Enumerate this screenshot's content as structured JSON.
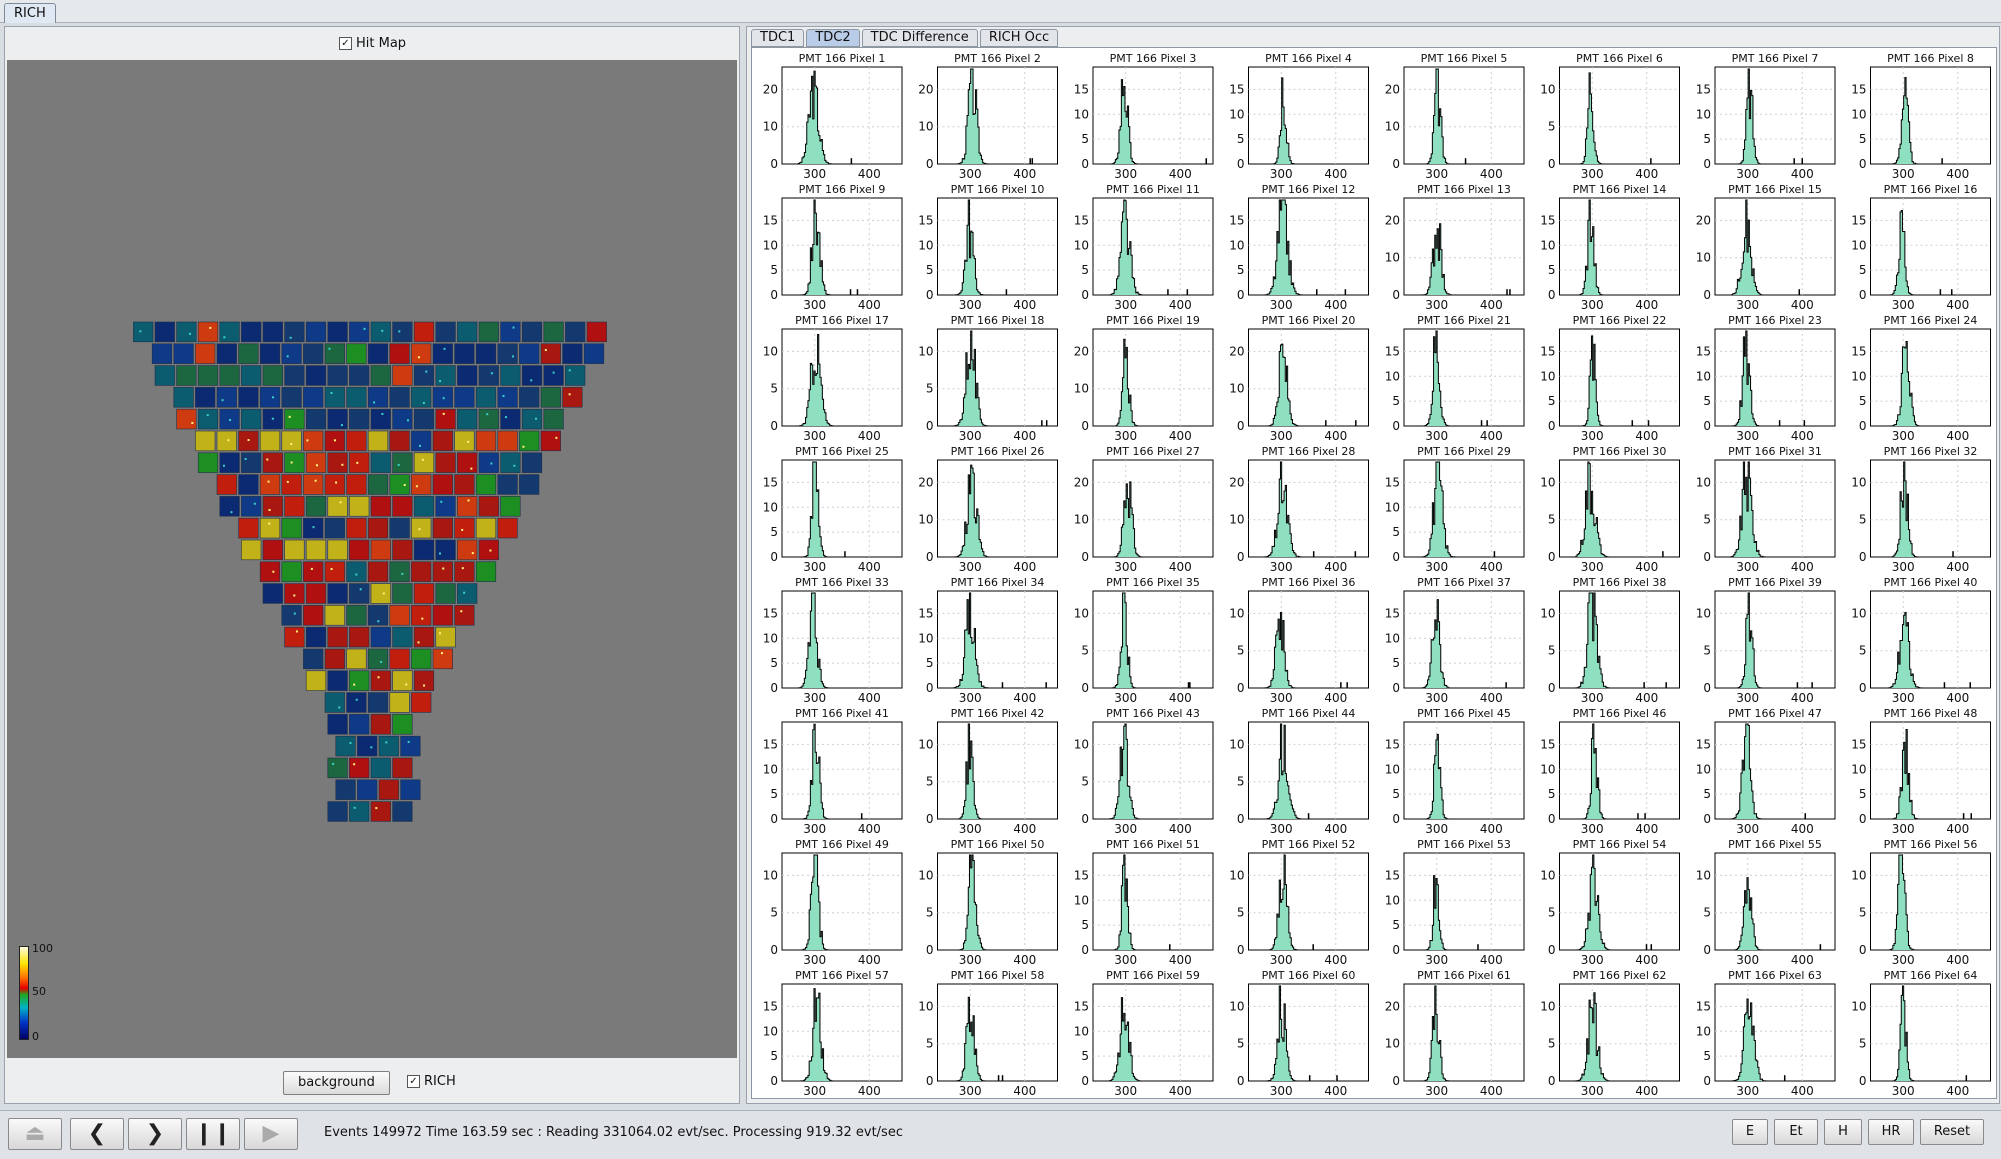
{
  "window": {
    "main_tab": "RICH"
  },
  "left": {
    "hitmap_checkbox": {
      "label": "Hit Map",
      "checked": true
    },
    "legend": {
      "max": "100",
      "mid": "50",
      "min": "0"
    },
    "background_button": "background",
    "rich_checkbox": {
      "label": "RICH",
      "checked": true
    }
  },
  "right": {
    "tabs": [
      "TDC1",
      "TDC2",
      "TDC Difference",
      "RICH Occ"
    ],
    "active_tab": "TDC2",
    "plots": {
      "xticks": [
        "300",
        "400"
      ],
      "titles": [
        "PMT 166 Pixel 1",
        "PMT 166 Pixel 2",
        "PMT 166 Pixel 3",
        "PMT 166 Pixel 4",
        "PMT 166 Pixel 5",
        "PMT 166 Pixel 6",
        "PMT 166 Pixel 7",
        "PMT 166 Pixel 8",
        "PMT 166 Pixel 9",
        "PMT 166 Pixel 10",
        "PMT 166 Pixel 11",
        "PMT 166 Pixel 12",
        "PMT 166 Pixel 13",
        "PMT 166 Pixel 14",
        "PMT 166 Pixel 15",
        "PMT 166 Pixel 16",
        "PMT 166 Pixel 17",
        "PMT 166 Pixel 18",
        "PMT 166 Pixel 19",
        "PMT 166 Pixel 20",
        "PMT 166 Pixel 21",
        "PMT 166 Pixel 22",
        "PMT 166 Pixel 23",
        "PMT 166 Pixel 24",
        "PMT 166 Pixel 25",
        "PMT 166 Pixel 26",
        "PMT 166 Pixel 27",
        "PMT 166 Pixel 28",
        "PMT 166 Pixel 29",
        "PMT 166 Pixel 30",
        "PMT 166 Pixel 31",
        "PMT 166 Pixel 32",
        "PMT 166 Pixel 33",
        "PMT 166 Pixel 34",
        "PMT 166 Pixel 35",
        "PMT 166 Pixel 36",
        "PMT 166 Pixel 37",
        "PMT 166 Pixel 38",
        "PMT 166 Pixel 39",
        "PMT 166 Pixel 40",
        "PMT 166 Pixel 41",
        "PMT 166 Pixel 42",
        "PMT 166 Pixel 43",
        "PMT 166 Pixel 44",
        "PMT 166 Pixel 45",
        "PMT 166 Pixel 46",
        "PMT 166 Pixel 47",
        "PMT 166 Pixel 48",
        "PMT 166 Pixel 49",
        "PMT 166 Pixel 50",
        "PMT 166 Pixel 51",
        "PMT 166 Pixel 52",
        "PMT 166 Pixel 53",
        "PMT 166 Pixel 54",
        "PMT 166 Pixel 55",
        "PMT 166 Pixel 56",
        "PMT 166 Pixel 57",
        "PMT 166 Pixel 58",
        "PMT 166 Pixel 59",
        "PMT 166 Pixel 60",
        "PMT 166 Pixel 61",
        "PMT 166 Pixel 62",
        "PMT 166 Pixel 63",
        "PMT 166 Pixel 64"
      ],
      "yticks": [
        [
          "0",
          "10",
          "20"
        ],
        [
          "0",
          "10",
          "20"
        ],
        [
          "0",
          "5",
          "10",
          "15"
        ],
        [
          "0",
          "5",
          "10",
          "15"
        ],
        [
          "0",
          "10",
          "20"
        ],
        [
          "0",
          "5",
          "10"
        ],
        [
          "0",
          "5",
          "10",
          "15"
        ],
        [
          "0",
          "5",
          "10",
          "15"
        ],
        [
          "0",
          "5",
          "10",
          "15"
        ],
        [
          "0",
          "5",
          "10",
          "15"
        ],
        [
          "0",
          "5",
          "10",
          "15"
        ],
        [
          "0",
          "5",
          "10",
          "15"
        ],
        [
          "0",
          "10",
          "20"
        ],
        [
          "0",
          "5",
          "10",
          "15"
        ],
        [
          "0",
          "10",
          "20"
        ],
        [
          "0",
          "5",
          "10",
          "15"
        ],
        [
          "0",
          "5",
          "10"
        ],
        [
          "0",
          "5",
          "10"
        ],
        [
          "0",
          "10",
          "20"
        ],
        [
          "0",
          "10",
          "20"
        ],
        [
          "0",
          "5",
          "10",
          "15"
        ],
        [
          "0",
          "5",
          "10",
          "15"
        ],
        [
          "0",
          "5",
          "10",
          "15"
        ],
        [
          "0",
          "5",
          "10",
          "15"
        ],
        [
          "0",
          "5",
          "10",
          "15"
        ],
        [
          "0",
          "10",
          "20"
        ],
        [
          "0",
          "10",
          "20"
        ],
        [
          "0",
          "10",
          "20"
        ],
        [
          "0",
          "5",
          "10",
          "15"
        ],
        [
          "0",
          "5",
          "10"
        ],
        [
          "0",
          "5",
          "10"
        ],
        [
          "0",
          "5",
          "10"
        ],
        [
          "0",
          "5",
          "10",
          "15"
        ],
        [
          "0",
          "5",
          "10",
          "15"
        ],
        [
          "0",
          "5",
          "10"
        ],
        [
          "0",
          "5",
          "10"
        ],
        [
          "0",
          "5",
          "10",
          "15"
        ],
        [
          "0",
          "5",
          "10"
        ],
        [
          "0",
          "5",
          "10"
        ],
        [
          "0",
          "5",
          "10"
        ],
        [
          "0",
          "5",
          "10",
          "15"
        ],
        [
          "0",
          "5",
          "10"
        ],
        [
          "0",
          "5",
          "10"
        ],
        [
          "0",
          "5",
          "10"
        ],
        [
          "0",
          "5",
          "10",
          "15"
        ],
        [
          "0",
          "5",
          "10",
          "15"
        ],
        [
          "0",
          "5",
          "10",
          "15"
        ],
        [
          "0",
          "5",
          "10",
          "15"
        ],
        [
          "0",
          "5",
          "10"
        ],
        [
          "0",
          "5",
          "10"
        ],
        [
          "0",
          "5",
          "10",
          "15"
        ],
        [
          "0",
          "5",
          "10"
        ],
        [
          "0",
          "5",
          "10",
          "15"
        ],
        [
          "0",
          "5",
          "10"
        ],
        [
          "0",
          "5",
          "10"
        ],
        [
          "0",
          "5",
          "10"
        ],
        [
          "0",
          "5",
          "10",
          "15"
        ],
        [
          "0",
          "5",
          "10"
        ],
        [
          "0",
          "5",
          "10",
          "15"
        ],
        [
          "0",
          "5",
          "10"
        ],
        [
          "0",
          "10",
          "20"
        ],
        [
          "0",
          "5",
          "10"
        ],
        [
          "0",
          "5",
          "10",
          "15"
        ],
        [
          "0",
          "5",
          "10"
        ]
      ]
    }
  },
  "status": {
    "text": "Events 149972  Time 163.59 sec : Reading 331064.02  evt/sec. Processing 919.32 evt/sec",
    "buttons": [
      "E",
      "Et",
      "H",
      "HR",
      "Reset"
    ]
  },
  "colors": {
    "hist_fill": "#8fe0c0",
    "hist_line": "#000000",
    "hitmap_bg": "#7a7a7a",
    "active_tab": "#b9cde8"
  }
}
